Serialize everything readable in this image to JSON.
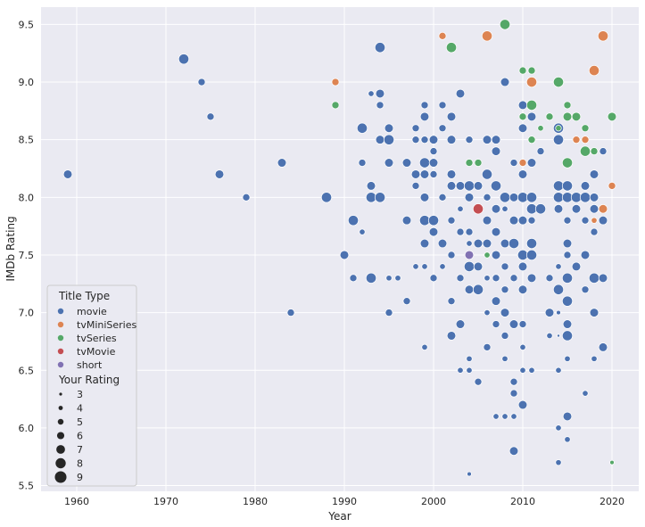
{
  "chart_data": {
    "type": "scatter",
    "title": "",
    "xlabel": "Year",
    "ylabel": "IMDb Rating",
    "xlim": [
      1956,
      2023
    ],
    "ylim": [
      5.45,
      9.65
    ],
    "xticks": [
      1960,
      1970,
      1980,
      1990,
      2000,
      2010,
      2020
    ],
    "yticks": [
      5.5,
      6.0,
      6.5,
      7.0,
      7.5,
      8.0,
      8.5,
      9.0,
      9.5
    ],
    "grid": true,
    "background": "#eaeaf2",
    "legend": {
      "placement": "lower-left",
      "hue_title": "Title Type",
      "size_title": "Your Rating",
      "size_values": [
        3,
        4,
        5,
        6,
        7,
        8,
        9
      ]
    },
    "series": [
      {
        "name": "movie",
        "color": "#4c72b0",
        "points": [
          [
            1959,
            8.2,
            7
          ],
          [
            1972,
            9.2,
            8
          ],
          [
            1974,
            9.0,
            6
          ],
          [
            1975,
            8.7,
            6
          ],
          [
            1976,
            8.2,
            7
          ],
          [
            1979,
            8.0,
            6
          ],
          [
            1983,
            8.3,
            7
          ],
          [
            1984,
            7.0,
            6
          ],
          [
            1988,
            8.0,
            8
          ],
          [
            1990,
            7.5,
            7
          ],
          [
            1991,
            7.8,
            8
          ],
          [
            1991,
            7.3,
            6
          ],
          [
            1992,
            8.6,
            8
          ],
          [
            1992,
            8.3,
            6
          ],
          [
            1992,
            7.7,
            5
          ],
          [
            1993,
            8.9,
            5
          ],
          [
            1993,
            8.1,
            7
          ],
          [
            1993,
            8.0,
            8
          ],
          [
            1993,
            7.3,
            8
          ],
          [
            1994,
            9.3,
            8
          ],
          [
            1994,
            8.9,
            7
          ],
          [
            1994,
            8.8,
            6
          ],
          [
            1994,
            8.5,
            7
          ],
          [
            1994,
            8.0,
            8
          ],
          [
            1995,
            8.6,
            7
          ],
          [
            1995,
            8.5,
            8
          ],
          [
            1995,
            8.3,
            7
          ],
          [
            1995,
            7.3,
            5
          ],
          [
            1995,
            7.0,
            6
          ],
          [
            1996,
            7.3,
            5
          ],
          [
            1997,
            8.3,
            7
          ],
          [
            1997,
            7.8,
            7
          ],
          [
            1997,
            7.1,
            6
          ],
          [
            1998,
            8.6,
            6
          ],
          [
            1998,
            8.5,
            6
          ],
          [
            1998,
            8.2,
            7
          ],
          [
            1998,
            8.1,
            6
          ],
          [
            1998,
            7.4,
            5
          ],
          [
            1999,
            8.8,
            6
          ],
          [
            1999,
            8.7,
            7
          ],
          [
            1999,
            8.5,
            6
          ],
          [
            1999,
            8.3,
            8
          ],
          [
            1999,
            8.2,
            7
          ],
          [
            1999,
            8.0,
            7
          ],
          [
            1999,
            7.8,
            8
          ],
          [
            1999,
            7.6,
            7
          ],
          [
            1999,
            7.4,
            5
          ],
          [
            1999,
            6.7,
            5
          ],
          [
            2000,
            8.5,
            7
          ],
          [
            2000,
            8.4,
            6
          ],
          [
            2000,
            8.3,
            7
          ],
          [
            2000,
            8.2,
            6
          ],
          [
            2000,
            7.8,
            8
          ],
          [
            2000,
            7.7,
            7
          ],
          [
            2000,
            7.3,
            6
          ],
          [
            2001,
            8.8,
            6
          ],
          [
            2001,
            8.6,
            6
          ],
          [
            2001,
            8.0,
            6
          ],
          [
            2001,
            7.6,
            7
          ],
          [
            2001,
            7.4,
            5
          ],
          [
            2002,
            8.7,
            7
          ],
          [
            2002,
            8.5,
            7
          ],
          [
            2002,
            8.2,
            7
          ],
          [
            2002,
            8.1,
            7
          ],
          [
            2002,
            7.8,
            6
          ],
          [
            2002,
            7.5,
            6
          ],
          [
            2002,
            7.1,
            6
          ],
          [
            2002,
            6.8,
            7
          ],
          [
            2003,
            8.9,
            7
          ],
          [
            2003,
            8.1,
            7
          ],
          [
            2003,
            7.9,
            5
          ],
          [
            2003,
            7.7,
            6
          ],
          [
            2003,
            7.3,
            6
          ],
          [
            2003,
            6.9,
            7
          ],
          [
            2003,
            6.5,
            5
          ],
          [
            2004,
            8.5,
            6
          ],
          [
            2004,
            8.1,
            8
          ],
          [
            2004,
            8.0,
            7
          ],
          [
            2004,
            7.7,
            6
          ],
          [
            2004,
            7.6,
            5
          ],
          [
            2004,
            7.4,
            8
          ],
          [
            2004,
            7.2,
            7
          ],
          [
            2004,
            6.6,
            5
          ],
          [
            2004,
            6.5,
            5
          ],
          [
            2004,
            5.6,
            4
          ],
          [
            2005,
            8.1,
            7
          ],
          [
            2005,
            7.6,
            7
          ],
          [
            2005,
            7.4,
            7
          ],
          [
            2005,
            7.2,
            8
          ],
          [
            2005,
            6.4,
            6
          ],
          [
            2006,
            8.5,
            7
          ],
          [
            2006,
            8.2,
            8
          ],
          [
            2006,
            8.0,
            6
          ],
          [
            2006,
            7.8,
            7
          ],
          [
            2006,
            7.6,
            7
          ],
          [
            2006,
            7.3,
            5
          ],
          [
            2006,
            7.0,
            5
          ],
          [
            2006,
            6.7,
            6
          ],
          [
            2007,
            8.5,
            7
          ],
          [
            2007,
            8.4,
            7
          ],
          [
            2007,
            8.1,
            8
          ],
          [
            2007,
            7.9,
            7
          ],
          [
            2007,
            7.7,
            7
          ],
          [
            2007,
            7.5,
            7
          ],
          [
            2007,
            7.3,
            6
          ],
          [
            2007,
            7.1,
            7
          ],
          [
            2007,
            6.9,
            6
          ],
          [
            2007,
            6.1,
            5
          ],
          [
            2008,
            9.0,
            7
          ],
          [
            2008,
            8.0,
            8
          ],
          [
            2008,
            7.9,
            5
          ],
          [
            2008,
            7.6,
            7
          ],
          [
            2008,
            7.4,
            6
          ],
          [
            2008,
            7.2,
            6
          ],
          [
            2008,
            7.0,
            7
          ],
          [
            2008,
            6.8,
            6
          ],
          [
            2008,
            6.6,
            5
          ],
          [
            2008,
            6.1,
            5
          ],
          [
            2009,
            8.3,
            6
          ],
          [
            2009,
            8.0,
            7
          ],
          [
            2009,
            7.8,
            7
          ],
          [
            2009,
            7.6,
            8
          ],
          [
            2009,
            7.3,
            6
          ],
          [
            2009,
            6.9,
            7
          ],
          [
            2009,
            6.4,
            6
          ],
          [
            2009,
            6.3,
            6
          ],
          [
            2009,
            6.1,
            5
          ],
          [
            2009,
            5.8,
            7
          ],
          [
            2010,
            8.8,
            7
          ],
          [
            2010,
            8.6,
            7
          ],
          [
            2010,
            8.2,
            7
          ],
          [
            2010,
            8.0,
            8
          ],
          [
            2010,
            7.8,
            7
          ],
          [
            2010,
            7.5,
            8
          ],
          [
            2010,
            7.4,
            7
          ],
          [
            2010,
            7.2,
            7
          ],
          [
            2010,
            6.9,
            6
          ],
          [
            2010,
            6.7,
            5
          ],
          [
            2010,
            6.5,
            5
          ],
          [
            2010,
            6.2,
            7
          ],
          [
            2011,
            8.7,
            7
          ],
          [
            2011,
            8.3,
            7
          ],
          [
            2011,
            8.0,
            8
          ],
          [
            2011,
            7.9,
            8
          ],
          [
            2011,
            7.8,
            6
          ],
          [
            2011,
            7.6,
            8
          ],
          [
            2011,
            7.5,
            8
          ],
          [
            2011,
            7.3,
            7
          ],
          [
            2011,
            6.5,
            5
          ],
          [
            2012,
            8.4,
            6
          ],
          [
            2012,
            7.9,
            8
          ],
          [
            2013,
            7.3,
            6
          ],
          [
            2013,
            7.0,
            7
          ],
          [
            2013,
            6.8,
            5
          ],
          [
            2014,
            8.6,
            8
          ],
          [
            2014,
            8.5,
            8
          ],
          [
            2014,
            8.1,
            8
          ],
          [
            2014,
            8.0,
            8
          ],
          [
            2014,
            7.9,
            7
          ],
          [
            2014,
            7.4,
            5
          ],
          [
            2014,
            7.2,
            8
          ],
          [
            2014,
            7.0,
            4
          ],
          [
            2014,
            6.8,
            3
          ],
          [
            2014,
            6.5,
            5
          ],
          [
            2014,
            6.0,
            5
          ],
          [
            2014,
            5.7,
            5
          ],
          [
            2015,
            8.1,
            8
          ],
          [
            2015,
            8.0,
            8
          ],
          [
            2015,
            7.8,
            6
          ],
          [
            2015,
            7.6,
            7
          ],
          [
            2015,
            7.5,
            6
          ],
          [
            2015,
            7.3,
            8
          ],
          [
            2015,
            7.1,
            8
          ],
          [
            2015,
            6.9,
            7
          ],
          [
            2015,
            6.8,
            8
          ],
          [
            2015,
            6.6,
            5
          ],
          [
            2015,
            6.1,
            7
          ],
          [
            2015,
            5.9,
            5
          ],
          [
            2016,
            8.0,
            8
          ],
          [
            2016,
            7.9,
            7
          ],
          [
            2016,
            7.4,
            7
          ],
          [
            2017,
            8.1,
            7
          ],
          [
            2017,
            8.0,
            8
          ],
          [
            2017,
            7.8,
            6
          ],
          [
            2017,
            7.5,
            7
          ],
          [
            2017,
            7.2,
            6
          ],
          [
            2017,
            6.3,
            5
          ],
          [
            2018,
            8.2,
            7
          ],
          [
            2018,
            8.0,
            7
          ],
          [
            2018,
            7.9,
            7
          ],
          [
            2018,
            7.7,
            6
          ],
          [
            2018,
            7.3,
            8
          ],
          [
            2018,
            7.0,
            7
          ],
          [
            2018,
            6.6,
            5
          ],
          [
            2019,
            8.4,
            6
          ],
          [
            2019,
            7.8,
            7
          ],
          [
            2019,
            7.3,
            7
          ],
          [
            2019,
            6.7,
            7
          ]
        ]
      },
      {
        "name": "tvMiniSeries",
        "color": "#dd8452",
        "points": [
          [
            1989,
            9.0,
            6
          ],
          [
            2001,
            9.4,
            6
          ],
          [
            2006,
            9.4,
            8
          ],
          [
            2010,
            8.3,
            6
          ],
          [
            2011,
            9.0,
            8
          ],
          [
            2016,
            8.5,
            6
          ],
          [
            2017,
            8.5,
            6
          ],
          [
            2018,
            9.1,
            8
          ],
          [
            2018,
            7.8,
            5
          ],
          [
            2019,
            9.4,
            8
          ],
          [
            2019,
            7.9,
            7
          ],
          [
            2020,
            8.1,
            6
          ]
        ]
      },
      {
        "name": "tvSeries",
        "color": "#55a868",
        "points": [
          [
            1989,
            8.8,
            6
          ],
          [
            2002,
            9.3,
            8
          ],
          [
            2004,
            8.3,
            6
          ],
          [
            2005,
            8.3,
            6
          ],
          [
            2006,
            7.5,
            5
          ],
          [
            2008,
            9.5,
            8
          ],
          [
            2010,
            9.1,
            6
          ],
          [
            2010,
            8.7,
            6
          ],
          [
            2011,
            9.1,
            6
          ],
          [
            2011,
            8.8,
            8
          ],
          [
            2011,
            8.5,
            6
          ],
          [
            2012,
            8.6,
            5
          ],
          [
            2013,
            8.7,
            6
          ],
          [
            2014,
            9.0,
            8
          ],
          [
            2014,
            8.6,
            5
          ],
          [
            2015,
            8.8,
            6
          ],
          [
            2015,
            8.7,
            7
          ],
          [
            2015,
            8.3,
            8
          ],
          [
            2016,
            8.7,
            7
          ],
          [
            2017,
            8.6,
            6
          ],
          [
            2017,
            8.4,
            8
          ],
          [
            2018,
            8.4,
            6
          ],
          [
            2020,
            8.7,
            7
          ],
          [
            2020,
            5.7,
            4
          ]
        ]
      },
      {
        "name": "tvMovie",
        "color": "#c44e52",
        "points": [
          [
            2005,
            7.9,
            8
          ]
        ]
      },
      {
        "name": "short",
        "color": "#8172b3",
        "points": [
          [
            2004,
            7.5,
            7
          ]
        ]
      }
    ]
  }
}
